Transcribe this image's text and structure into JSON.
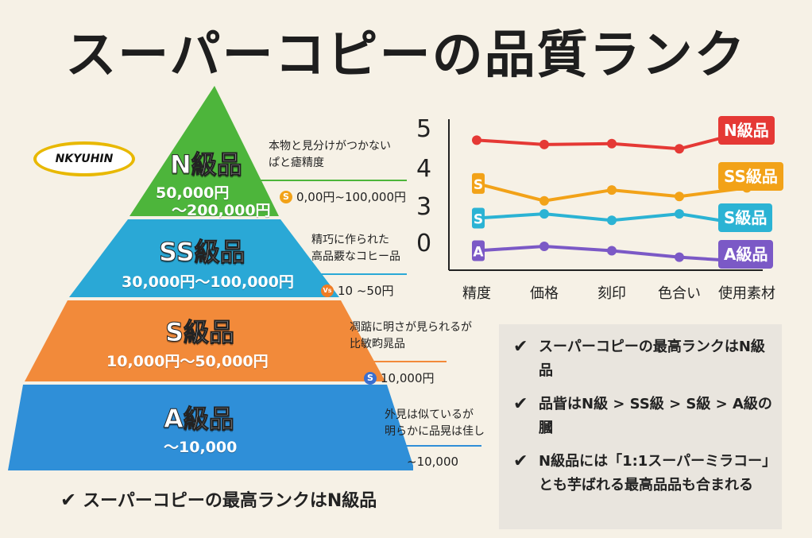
{
  "title": "スーパーコピーの品質ランク",
  "logo": "NKYUHIN",
  "levels": [
    {
      "name": "N級品",
      "price_line1": "50,000円",
      "price_line2": "～200,000円",
      "color": "#4db53b",
      "desc": [
        "本物と見分けがつかない",
        "ぱと瘧精度"
      ],
      "tag": "0,00円~100,000円",
      "tag_icon": "S",
      "tag_color": "#f2a218"
    },
    {
      "name": "SS級品",
      "price_line1": "30,000円～100,000円",
      "color": "#2aa8d6",
      "desc": [
        "精巧に作られた",
        "高品覈なコヒー品"
      ],
      "tag": "10 ~50円",
      "tag_icon": "Vs",
      "tag_color": "#f07c24"
    },
    {
      "name": "S級品",
      "price_line1": "10,000円～50,000円",
      "color": "#f28a3a",
      "desc": [
        "凋踮に明さが見られるが",
        "比敏畇晁品"
      ],
      "tag": "10,000円",
      "tag_icon": "S",
      "tag_color": "#3b6fd0"
    },
    {
      "name": "A級品",
      "price_line1": "～10,000",
      "color": "#2f8fd8",
      "desc": [
        "外見は似ているが",
        "明らかに品晃は佳し"
      ],
      "tag": "~10,000",
      "tag_icon": "",
      "tag_color": "#2f8fd8"
    }
  ],
  "chart_data": {
    "type": "line",
    "categories": [
      "精度",
      "価格",
      "刻印",
      "色合い",
      "使用素材"
    ],
    "y_tick_labels": [
      "5",
      "4",
      "3",
      "0"
    ],
    "series": [
      {
        "name": "N級品",
        "color": "#e53935",
        "values": [
          4.8,
          4.7,
          4.72,
          4.6,
          5.0
        ]
      },
      {
        "name": "SS級品",
        "color": "#f2a218",
        "values": [
          3.8,
          3.4,
          3.65,
          3.5,
          3.7
        ]
      },
      {
        "name": "S級品",
        "color": "#2bb3d4",
        "values": [
          3.0,
          3.1,
          2.95,
          3.1,
          2.85
        ]
      },
      {
        "name": "A級品",
        "color": "#7b59c6",
        "values": [
          2.25,
          2.35,
          2.25,
          2.1,
          2.0
        ]
      }
    ],
    "series_marks": [
      "S",
      "S",
      "A"
    ]
  },
  "points": [
    "スーパーコピーの最高ランクはN級品",
    "品眥はN級 > SS級 > S級 > A級の膕",
    "N級品には「1:1スーパーミラコー」とも芋ばれる最高品品も合まれる"
  ],
  "bottom_text": "スーパーコピーの最高ランクはN級品",
  "check_mark": "✔"
}
